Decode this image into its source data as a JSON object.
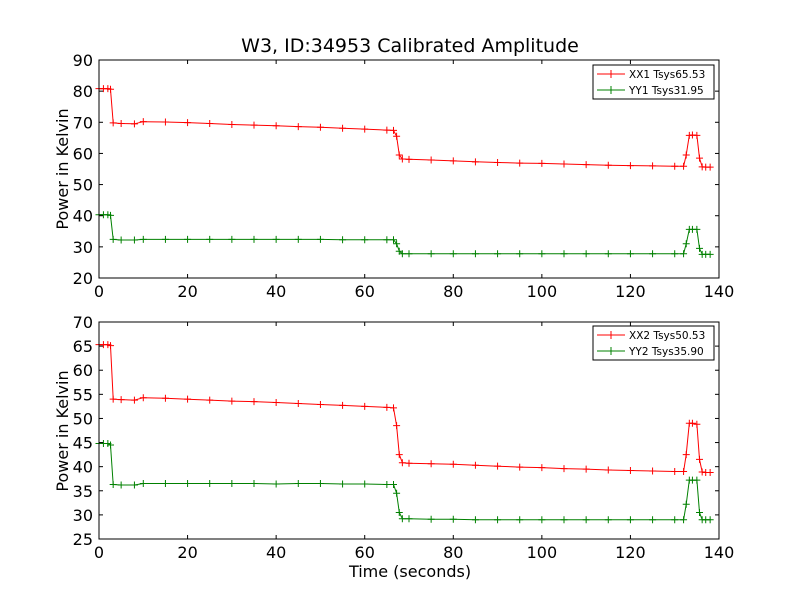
{
  "chart_data": [
    {
      "type": "line",
      "title": "W3, ID:34953 Calibrated Amplitude",
      "xlabel": "",
      "ylabel": "Power in Kelvin",
      "xlim": [
        0,
        140
      ],
      "ylim": [
        20,
        90
      ],
      "x_ticks": [
        "0",
        "20",
        "40",
        "60",
        "80",
        "100",
        "120",
        "140"
      ],
      "y_ticks": [
        "20",
        "30",
        "40",
        "50",
        "60",
        "70",
        "80",
        "90"
      ],
      "grid": false,
      "legend": "top-right",
      "series": [
        {
          "name": "XX1 Tsys65.53",
          "color": "#ff0000",
          "marker": "plus",
          "x": [
            0,
            1,
            2,
            2.6,
            3.2,
            5,
            8,
            10,
            15,
            20,
            25,
            30,
            35,
            40,
            45,
            50,
            55,
            60,
            65,
            66.5,
            67.2,
            67.8,
            68.5,
            70,
            75,
            80,
            85,
            90,
            95,
            100,
            105,
            110,
            115,
            120,
            125,
            130,
            132,
            132.6,
            133.3,
            134,
            135,
            135.6,
            136.2,
            137,
            138
          ],
          "y": [
            80.8,
            80.8,
            80.8,
            80.6,
            69.8,
            69.6,
            69.5,
            70.2,
            70.1,
            69.9,
            69.6,
            69.3,
            69.1,
            68.9,
            68.6,
            68.4,
            68.1,
            67.8,
            67.5,
            67.4,
            65.5,
            59.5,
            58.2,
            58.1,
            57.9,
            57.6,
            57.3,
            57.1,
            56.9,
            56.8,
            56.6,
            56.4,
            56.2,
            56.1,
            56.0,
            55.9,
            55.9,
            59.5,
            65.8,
            65.9,
            65.8,
            58.5,
            55.7,
            55.6,
            55.6
          ]
        },
        {
          "name": "YY1 Tsys31.95",
          "color": "#008000",
          "marker": "plus",
          "x": [
            0,
            1,
            2,
            2.6,
            3.2,
            5,
            8,
            10,
            15,
            20,
            25,
            30,
            35,
            40,
            45,
            50,
            55,
            60,
            65,
            66.5,
            67.2,
            67.8,
            68.5,
            70,
            75,
            80,
            85,
            90,
            95,
            100,
            105,
            110,
            115,
            120,
            125,
            130,
            132,
            132.6,
            133.3,
            134,
            135,
            135.6,
            136.2,
            137,
            138
          ],
          "y": [
            40.3,
            40.3,
            40.3,
            40.1,
            32.4,
            32.2,
            32.2,
            32.4,
            32.4,
            32.4,
            32.4,
            32.4,
            32.4,
            32.4,
            32.4,
            32.4,
            32.3,
            32.3,
            32.3,
            32.3,
            31.0,
            28.6,
            27.8,
            27.8,
            27.8,
            27.8,
            27.8,
            27.8,
            27.8,
            27.8,
            27.8,
            27.8,
            27.8,
            27.8,
            27.8,
            27.8,
            27.8,
            31.0,
            35.6,
            35.6,
            35.6,
            29.5,
            27.6,
            27.6,
            27.6
          ]
        }
      ]
    },
    {
      "type": "line",
      "title": "",
      "xlabel": "Time (seconds)",
      "ylabel": "Power in Kelvin",
      "xlim": [
        0,
        140
      ],
      "ylim": [
        25,
        70
      ],
      "x_ticks": [
        "0",
        "20",
        "40",
        "60",
        "80",
        "100",
        "120",
        "140"
      ],
      "y_ticks": [
        "25",
        "30",
        "35",
        "40",
        "45",
        "50",
        "55",
        "60",
        "65",
        "70"
      ],
      "grid": false,
      "legend": "top-right",
      "series": [
        {
          "name": "XX2 Tsys50.53",
          "color": "#ff0000",
          "marker": "plus",
          "x": [
            0,
            1,
            2,
            2.6,
            3.2,
            5,
            8,
            10,
            15,
            20,
            25,
            30,
            35,
            40,
            45,
            50,
            55,
            60,
            65,
            66.5,
            67.2,
            67.8,
            68.5,
            70,
            75,
            80,
            85,
            90,
            95,
            100,
            105,
            110,
            115,
            120,
            125,
            130,
            132,
            132.6,
            133.3,
            134,
            135,
            135.6,
            136.2,
            137,
            138
          ],
          "y": [
            65.3,
            65.3,
            65.3,
            65.1,
            54.0,
            53.9,
            53.8,
            54.3,
            54.2,
            54.0,
            53.8,
            53.6,
            53.5,
            53.3,
            53.1,
            52.9,
            52.7,
            52.5,
            52.3,
            52.2,
            48.5,
            42.5,
            40.8,
            40.7,
            40.6,
            40.5,
            40.3,
            40.1,
            39.9,
            39.8,
            39.6,
            39.5,
            39.3,
            39.2,
            39.1,
            39.0,
            39.0,
            42.5,
            49.0,
            49.0,
            48.8,
            41.5,
            38.9,
            38.8,
            38.8
          ]
        },
        {
          "name": "YY2 Tsys35.90",
          "color": "#008000",
          "marker": "plus",
          "x": [
            0,
            1,
            2,
            2.6,
            3.2,
            5,
            8,
            10,
            15,
            20,
            25,
            30,
            35,
            40,
            45,
            50,
            55,
            60,
            65,
            66.5,
            67.2,
            67.8,
            68.5,
            70,
            75,
            80,
            85,
            90,
            95,
            100,
            105,
            110,
            115,
            120,
            125,
            130,
            132,
            132.6,
            133.3,
            134,
            135,
            135.6,
            136.2,
            137,
            138
          ],
          "y": [
            44.8,
            44.8,
            44.8,
            44.5,
            36.3,
            36.2,
            36.2,
            36.5,
            36.5,
            36.5,
            36.5,
            36.5,
            36.5,
            36.4,
            36.5,
            36.5,
            36.4,
            36.4,
            36.3,
            36.3,
            34.5,
            30.5,
            29.2,
            29.2,
            29.1,
            29.1,
            29.0,
            29.0,
            29.0,
            29.0,
            29.0,
            29.0,
            29.0,
            29.0,
            29.0,
            29.0,
            29.0,
            32.2,
            37.2,
            37.2,
            37.2,
            30.5,
            29.0,
            29.0,
            29.0
          ]
        }
      ]
    }
  ]
}
